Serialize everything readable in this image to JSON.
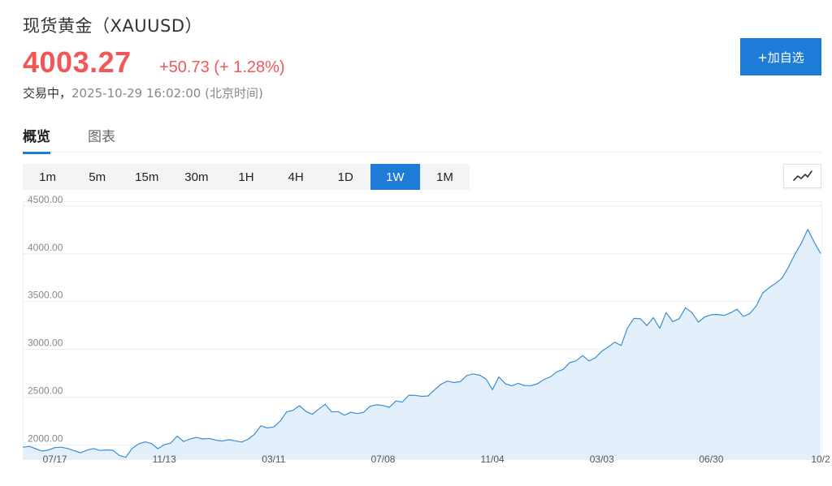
{
  "header": {
    "title": "现货黄金（XAUUSD）",
    "price": "4003.27",
    "change": "+50.73 (+ 1.28%)",
    "status_label": "交易中，",
    "timestamp": "2025-10-29 16:02:00 (北京时间)"
  },
  "actions": {
    "add_watchlist": "+加自选"
  },
  "tabs": [
    {
      "label": "概览",
      "active": true
    },
    {
      "label": "图表",
      "active": false
    }
  ],
  "periods": [
    {
      "label": "1m",
      "active": false
    },
    {
      "label": "5m",
      "active": false
    },
    {
      "label": "15m",
      "active": false
    },
    {
      "label": "30m",
      "active": false
    },
    {
      "label": "1H",
      "active": false
    },
    {
      "label": "4H",
      "active": false
    },
    {
      "label": "1D",
      "active": false
    },
    {
      "label": "1W",
      "active": true
    },
    {
      "label": "1M",
      "active": false
    }
  ],
  "chart_type_icon": "line-chart-icon",
  "colors": {
    "price_up": "#f25757",
    "accent": "#1f7bd8",
    "line": "#3a8fd4",
    "fill": "#e3f0fc"
  },
  "chart_data": {
    "type": "area",
    "title": "",
    "xlabel": "",
    "ylabel": "",
    "ylim": [
      1850,
      4550
    ],
    "y_ticks": [
      "4500.00",
      "4000.00",
      "3500.00",
      "3000.00",
      "2500.00",
      "2000.00"
    ],
    "y_tick_values": [
      4500,
      4000,
      3500,
      3000,
      2500,
      2000
    ],
    "x_ticks": [
      "07/17",
      "11/13",
      "03/11",
      "07/08",
      "11/04",
      "03/03",
      "06/30",
      "10/2"
    ],
    "x_tick_index": [
      5,
      22,
      39,
      56,
      73,
      90,
      107,
      124
    ],
    "values": [
      1975,
      1985,
      1960,
      1935,
      1948,
      1972,
      1976,
      1962,
      1938,
      1918,
      1945,
      1962,
      1942,
      1948,
      1943,
      1890,
      1870,
      1962,
      2010,
      2032,
      2015,
      1960,
      2002,
      2018,
      2092,
      2035,
      2062,
      2078,
      2062,
      2067,
      2050,
      2040,
      2055,
      2043,
      2030,
      2058,
      2110,
      2200,
      2178,
      2188,
      2248,
      2345,
      2362,
      2410,
      2350,
      2320,
      2375,
      2425,
      2345,
      2348,
      2310,
      2342,
      2328,
      2342,
      2405,
      2420,
      2412,
      2393,
      2460,
      2448,
      2520,
      2518,
      2508,
      2512,
      2575,
      2635,
      2668,
      2653,
      2662,
      2725,
      2743,
      2730,
      2690,
      2578,
      2712,
      2640,
      2618,
      2645,
      2620,
      2620,
      2640,
      2685,
      2712,
      2765,
      2790,
      2860,
      2880,
      2935,
      2878,
      2912,
      2980,
      3025,
      3075,
      3040,
      3225,
      3325,
      3320,
      3248,
      3332,
      3220,
      3385,
      3290,
      3320,
      3435,
      3385,
      3285,
      3340,
      3362,
      3365,
      3355,
      3382,
      3420,
      3345,
      3375,
      3455,
      3590,
      3645,
      3690,
      3745,
      3860,
      3995,
      4110,
      4255,
      4120,
      4003
    ],
    "grid": true,
    "legend": "none"
  }
}
